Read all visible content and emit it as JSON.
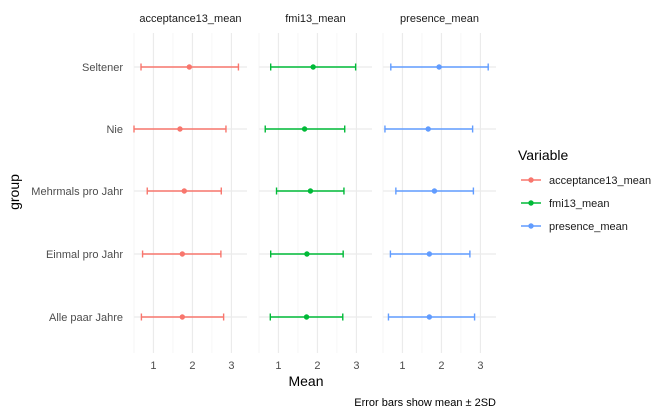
{
  "chart_data": {
    "type": "scatter",
    "subtype": "faceted point range (mean with error bars)",
    "facets": [
      "acceptance13_mean",
      "fmi13_mean",
      "presence_mean"
    ],
    "categories": [
      "Seltener",
      "Nie",
      "Mehrmals pro Jahr",
      "Einmal pro Jahr",
      "Alle paar Jahre"
    ],
    "xlabel": "Mean",
    "ylabel": "group",
    "xlim": [
      0.5,
      3.4
    ],
    "xticks": [
      1,
      2,
      3
    ],
    "grid": true,
    "legend": {
      "title": "Variable",
      "position": "right",
      "entries": [
        "acceptance13_mean",
        "fmi13_mean",
        "presence_mean"
      ]
    },
    "caption": "Error bars show mean ± 2SD",
    "colors": {
      "acceptance13_mean": "#F8766D",
      "fmi13_mean": "#00BA38",
      "presence_mean": "#619CFF",
      "grid_major": "#ebebeb",
      "grid_minor": "#f4f4f4",
      "text": "#4d4d4d"
    },
    "series": [
      {
        "name": "acceptance13_mean",
        "points": [
          {
            "group": "Seltener",
            "mean": 1.92,
            "low": 0.68,
            "high": 3.18
          },
          {
            "group": "Nie",
            "mean": 1.68,
            "low": 0.5,
            "high": 2.86
          },
          {
            "group": "Mehrmals pro Jahr",
            "mean": 1.79,
            "low": 0.84,
            "high": 2.74
          },
          {
            "group": "Einmal pro Jahr",
            "mean": 1.74,
            "low": 0.72,
            "high": 2.73
          },
          {
            "group": "Alle paar Jahre",
            "mean": 1.74,
            "low": 0.69,
            "high": 2.8
          }
        ]
      },
      {
        "name": "fmi13_mean",
        "points": [
          {
            "group": "Seltener",
            "mean": 1.89,
            "low": 0.8,
            "high": 2.98
          },
          {
            "group": "Nie",
            "mean": 1.67,
            "low": 0.66,
            "high": 2.7
          },
          {
            "group": "Mehrmals pro Jahr",
            "mean": 1.82,
            "low": 0.95,
            "high": 2.68
          },
          {
            "group": "Einmal pro Jahr",
            "mean": 1.73,
            "low": 0.8,
            "high": 2.66
          },
          {
            "group": "Alle paar Jahre",
            "mean": 1.72,
            "low": 0.79,
            "high": 2.65
          }
        ]
      },
      {
        "name": "presence_mean",
        "points": [
          {
            "group": "Seltener",
            "mean": 1.94,
            "low": 0.7,
            "high": 3.2
          },
          {
            "group": "Nie",
            "mean": 1.66,
            "low": 0.55,
            "high": 2.8
          },
          {
            "group": "Mehrmals pro Jahr",
            "mean": 1.82,
            "low": 0.83,
            "high": 2.82
          },
          {
            "group": "Einmal pro Jahr",
            "mean": 1.69,
            "low": 0.69,
            "high": 2.73
          },
          {
            "group": "Alle paar Jahre",
            "mean": 1.69,
            "low": 0.64,
            "high": 2.85
          }
        ]
      }
    ]
  }
}
